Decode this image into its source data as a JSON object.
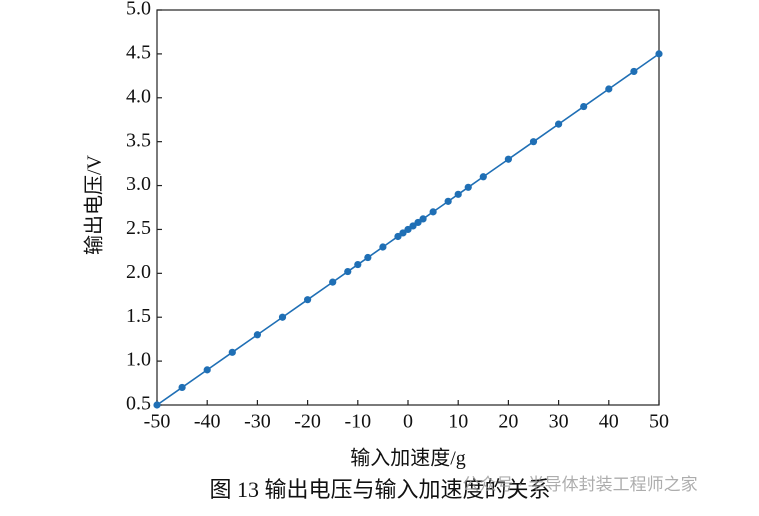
{
  "chart_data": {
    "type": "line",
    "x_label": "输入加速度/g",
    "y_label": "输出电压/V",
    "caption": "图 13   输出电压与输入加速度的关系",
    "watermark": "公众号 · 半导体封装工程师之家",
    "x": [
      -50,
      -45,
      -40,
      -35,
      -30,
      -25,
      -20,
      -15,
      -12,
      -10,
      -8,
      -5,
      -2,
      -1,
      0,
      1,
      2,
      3,
      5,
      8,
      10,
      12,
      15,
      20,
      25,
      30,
      35,
      40,
      45,
      50
    ],
    "series": [
      {
        "name": "输出电压",
        "color": "#1f6fb5",
        "values": [
          0.5,
          0.7,
          0.9,
          1.1,
          1.3,
          1.5,
          1.7,
          1.9,
          2.02,
          2.1,
          2.18,
          2.3,
          2.42,
          2.46,
          2.5,
          2.54,
          2.58,
          2.62,
          2.7,
          2.82,
          2.9,
          2.98,
          3.1,
          3.3,
          3.5,
          3.7,
          3.9,
          4.1,
          4.3,
          4.5
        ]
      }
    ],
    "xlim": [
      -50,
      50
    ],
    "xticks": [
      -50,
      -40,
      -30,
      -20,
      -10,
      0,
      10,
      20,
      30,
      40,
      50
    ],
    "ylim": [
      0.5,
      5.0
    ],
    "yticks": [
      0.5,
      {
        "value": 1,
        "label": "1.0"
      },
      1.5,
      {
        "value": 2,
        "label": "2.0"
      },
      2.5,
      {
        "value": 3,
        "label": "3.0"
      },
      3.5,
      {
        "value": 4,
        "label": "4.0"
      },
      4.5,
      {
        "value": 5,
        "label": "5.0"
      }
    ],
    "grid": false
  }
}
